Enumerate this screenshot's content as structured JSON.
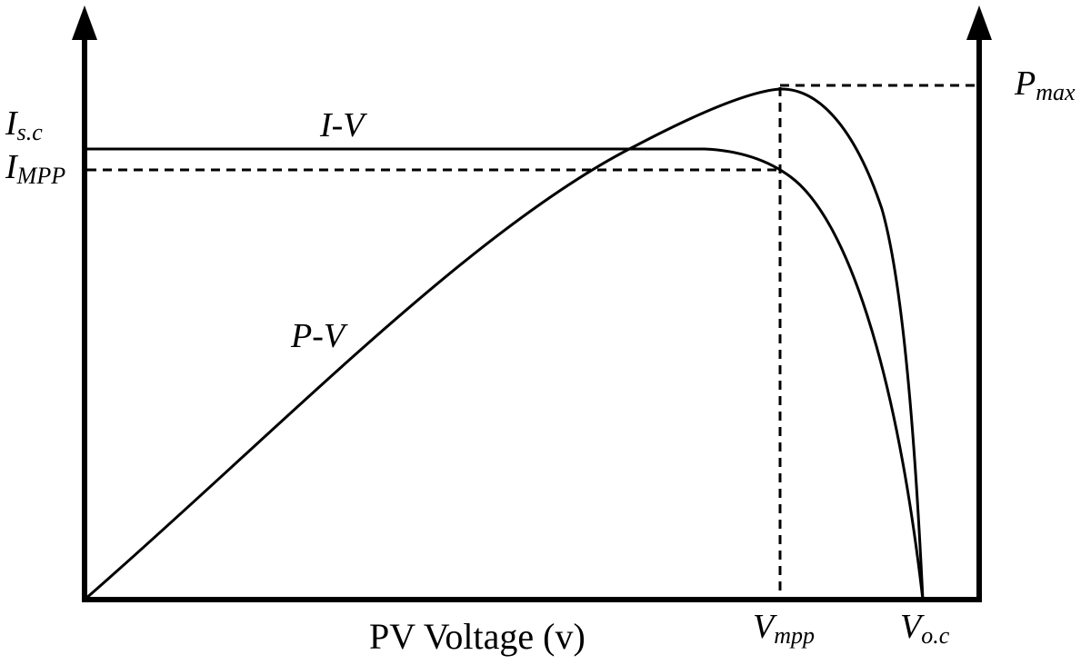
{
  "labels": {
    "isc": {
      "main": "I",
      "sub": "s.c"
    },
    "impp": {
      "main": "I",
      "sub": "MPP"
    },
    "iv": "I-V",
    "pv": "P-V",
    "pmax": {
      "main": "P",
      "sub": "max"
    },
    "vmpp": {
      "main": "V",
      "sub": "mpp"
    },
    "voc": {
      "main": "V",
      "sub": "o.c"
    },
    "x_axis": "PV Voltage (v)"
  }
}
